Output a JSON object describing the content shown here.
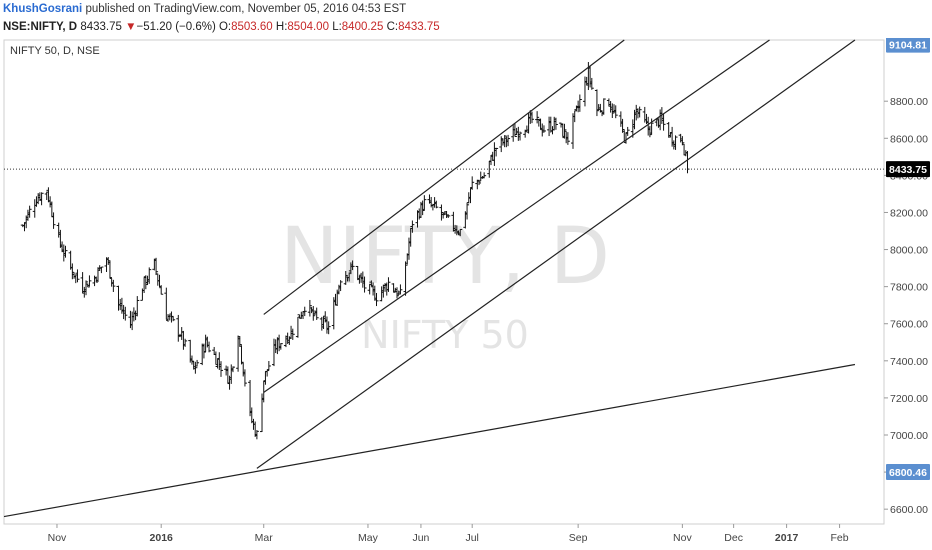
{
  "publish": {
    "author": "KhushGosrani",
    "text": "published on TradingView.com, November 05, 2016 04:53 EST"
  },
  "quote": {
    "symbol": "NSE:NIFTY, D",
    "last": "8433.75",
    "arrow": "▼",
    "change": "−51.20 (−0.6%)",
    "o_label": "O:",
    "o": "8503.60",
    "h_label": "H:",
    "h": "8504.00",
    "l_label": "L:",
    "l": "8400.25",
    "c_label": "C:",
    "c": "8433.75"
  },
  "chart": {
    "symbol_label": "NIFTY 50, D, NSE",
    "watermark_main": "NIFTY, D",
    "watermark_sub": "NIFTY 50"
  },
  "chart_data": {
    "type": "ohlc",
    "ylim": [
      6520,
      9130
    ],
    "y_ticks": [
      "6600.00",
      "6800.00",
      "7000.00",
      "7200.00",
      "7400.00",
      "7600.00",
      "7800.00",
      "8000.00",
      "8200.00",
      "8400.00",
      "8600.00",
      "8800.00"
    ],
    "x_ticks": [
      {
        "label": "Nov",
        "date": "2015-11-01",
        "bold": false
      },
      {
        "label": "2016",
        "date": "2016-01-01",
        "bold": true
      },
      {
        "label": "Mar",
        "date": "2016-03-01",
        "bold": false
      },
      {
        "label": "May",
        "date": "2016-05-01",
        "bold": false
      },
      {
        "label": "Jun",
        "date": "2016-06-01",
        "bold": false
      },
      {
        "label": "Jul",
        "date": "2016-07-01",
        "bold": false
      },
      {
        "label": "Sep",
        "date": "2016-09-01",
        "bold": false
      },
      {
        "label": "Nov",
        "date": "2016-11-01",
        "bold": false
      },
      {
        "label": "Dec",
        "date": "2016-12-01",
        "bold": false
      },
      {
        "label": "2017",
        "date": "2017-01-01",
        "bold": true
      },
      {
        "label": "Feb",
        "date": "2017-02-01",
        "bold": false
      }
    ],
    "last_price": 8433.75,
    "price_tags": [
      {
        "value": 9104.81,
        "label": "9104.81",
        "color": "#5b8fd0"
      },
      {
        "value": 8433.75,
        "label": "8433.75",
        "color": "#000000"
      },
      {
        "value": 6800.46,
        "label": "6800.46",
        "color": "#5b8fd0"
      }
    ],
    "close_path": [
      [
        "2015-10-12",
        8130
      ],
      [
        "2015-10-20",
        8280
      ],
      [
        "2015-10-26",
        8320
      ],
      [
        "2015-11-02",
        8050
      ],
      [
        "2015-11-09",
        7900
      ],
      [
        "2015-11-16",
        7800
      ],
      [
        "2015-11-23",
        7850
      ],
      [
        "2015-11-30",
        7950
      ],
      [
        "2015-12-07",
        7700
      ],
      [
        "2015-12-14",
        7600
      ],
      [
        "2015-12-21",
        7800
      ],
      [
        "2015-12-28",
        7920
      ],
      [
        "2016-01-04",
        7650
      ],
      [
        "2016-01-12",
        7550
      ],
      [
        "2016-01-20",
        7350
      ],
      [
        "2016-01-27",
        7500
      ],
      [
        "2016-02-03",
        7400
      ],
      [
        "2016-02-10",
        7300
      ],
      [
        "2016-02-15",
        7550
      ],
      [
        "2016-02-22",
        7100
      ],
      [
        "2016-02-26",
        7000
      ],
      [
        "2016-03-01",
        7300
      ],
      [
        "2016-03-08",
        7480
      ],
      [
        "2016-03-17",
        7550
      ],
      [
        "2016-03-25",
        7700
      ],
      [
        "2016-04-01",
        7620
      ],
      [
        "2016-04-08",
        7580
      ],
      [
        "2016-04-15",
        7850
      ],
      [
        "2016-04-22",
        7900
      ],
      [
        "2016-04-29",
        7800
      ],
      [
        "2016-05-06",
        7750
      ],
      [
        "2016-05-13",
        7820
      ],
      [
        "2016-05-20",
        7750
      ],
      [
        "2016-05-27",
        8150
      ],
      [
        "2016-06-03",
        8250
      ],
      [
        "2016-06-10",
        8220
      ],
      [
        "2016-06-17",
        8150
      ],
      [
        "2016-06-24",
        8100
      ],
      [
        "2016-07-01",
        8350
      ],
      [
        "2016-07-08",
        8400
      ],
      [
        "2016-07-15",
        8550
      ],
      [
        "2016-07-22",
        8600
      ],
      [
        "2016-07-29",
        8650
      ],
      [
        "2016-08-05",
        8700
      ],
      [
        "2016-08-12",
        8650
      ],
      [
        "2016-08-19",
        8680
      ],
      [
        "2016-08-26",
        8600
      ],
      [
        "2016-09-02",
        8800
      ],
      [
        "2016-09-07",
        8950
      ],
      [
        "2016-09-12",
        8750
      ],
      [
        "2016-09-19",
        8800
      ],
      [
        "2016-09-26",
        8650
      ],
      [
        "2016-09-29",
        8600
      ],
      [
        "2016-10-05",
        8750
      ],
      [
        "2016-10-12",
        8650
      ],
      [
        "2016-10-19",
        8700
      ],
      [
        "2016-10-26",
        8600
      ],
      [
        "2016-11-01",
        8600
      ],
      [
        "2016-11-04",
        8433.75
      ]
    ],
    "trendlines": [
      {
        "name": "channel-upper",
        "from": [
          "2016-03-01",
          7650
        ],
        "to": [
          "2016-09-28",
          9130
        ]
      },
      {
        "name": "channel-middle",
        "from": [
          "2016-03-01",
          7230
        ],
        "to": [
          "2016-12-22",
          9130
        ]
      },
      {
        "name": "channel-lower",
        "from": [
          "2016-02-26",
          6820
        ],
        "to": [
          "2017-02-10",
          9130
        ]
      },
      {
        "name": "long-support",
        "from": [
          "2015-10-01",
          6560
        ],
        "to": [
          "2017-02-10",
          7380
        ]
      }
    ]
  }
}
